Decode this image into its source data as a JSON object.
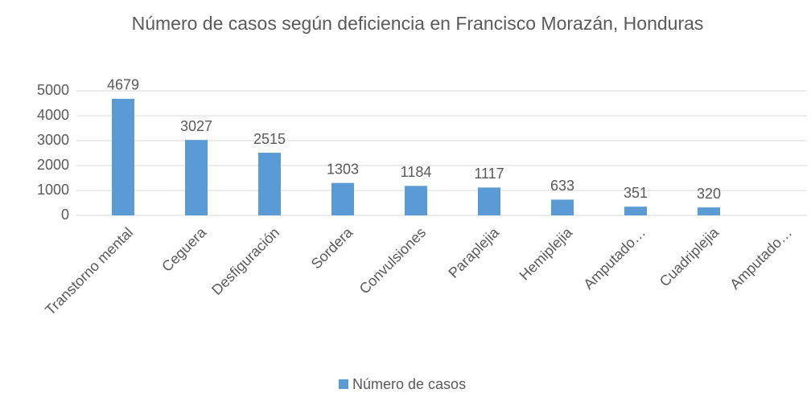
{
  "chart_data": {
    "type": "bar",
    "title": "Número de casos según deficiencia en Francisco Morazán, Honduras",
    "categories": [
      "Transtorno mental",
      "Ceguera",
      "Desfiguración",
      "Sordera",
      "Convulsiones",
      "Paraplejia",
      "Hemiplejia",
      "Amputado…",
      "Cuadriplejia",
      "Amputado…"
    ],
    "series": [
      {
        "name": "Número de casos",
        "color": "#5b9bd5",
        "values": [
          4679,
          3027,
          2515,
          1303,
          1184,
          1117,
          633,
          351,
          320,
          null
        ]
      }
    ],
    "ylim": [
      0,
      5000
    ],
    "yticks": [
      0,
      1000,
      2000,
      3000,
      4000,
      5000
    ],
    "grid": true,
    "legend": "bottom"
  }
}
